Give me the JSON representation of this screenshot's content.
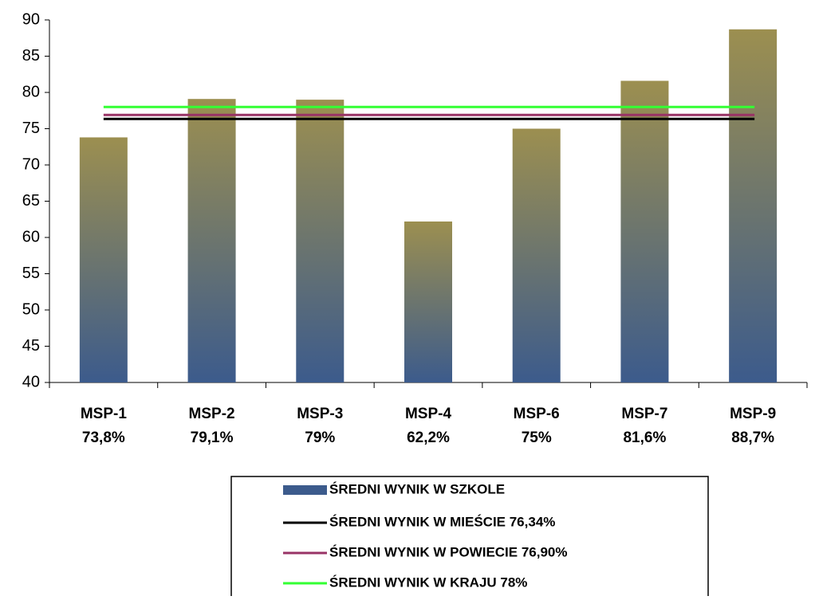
{
  "chart_data": {
    "type": "bar",
    "categories": [
      "MSP-1",
      "MSP-2",
      "MSP-3",
      "MSP-4",
      "MSP-6",
      "MSP-7",
      "MSP-9"
    ],
    "series": [
      {
        "name": "ŚREDNI WYNIK W SZKOLE",
        "type": "bar",
        "color": "#3c5b8c",
        "gradient_top": "#9c8f50",
        "values": [
          73.8,
          79.1,
          79,
          62.2,
          75,
          81.6,
          88.7
        ],
        "value_labels": [
          "73,8%",
          "79,1%",
          "79%",
          "62,2%",
          "75%",
          "81,6%",
          "88,7%"
        ]
      },
      {
        "name": "ŚREDNI WYNIK W MIEŚCIE 76,34%",
        "type": "hline",
        "color": "#000000",
        "value": 76.34
      },
      {
        "name": "ŚREDNI WYNIK W POWIECIE 76,90%",
        "type": "hline",
        "color": "#993366",
        "value": 76.9
      },
      {
        "name": "ŚREDNI WYNIK W KRAJU 78%",
        "type": "hline",
        "color": "#33ff33",
        "value": 78
      }
    ],
    "ylim": [
      40,
      90
    ],
    "yticks": [
      40,
      45,
      50,
      55,
      60,
      65,
      70,
      75,
      80,
      85,
      90
    ],
    "grid": false,
    "legend": "bottom"
  }
}
